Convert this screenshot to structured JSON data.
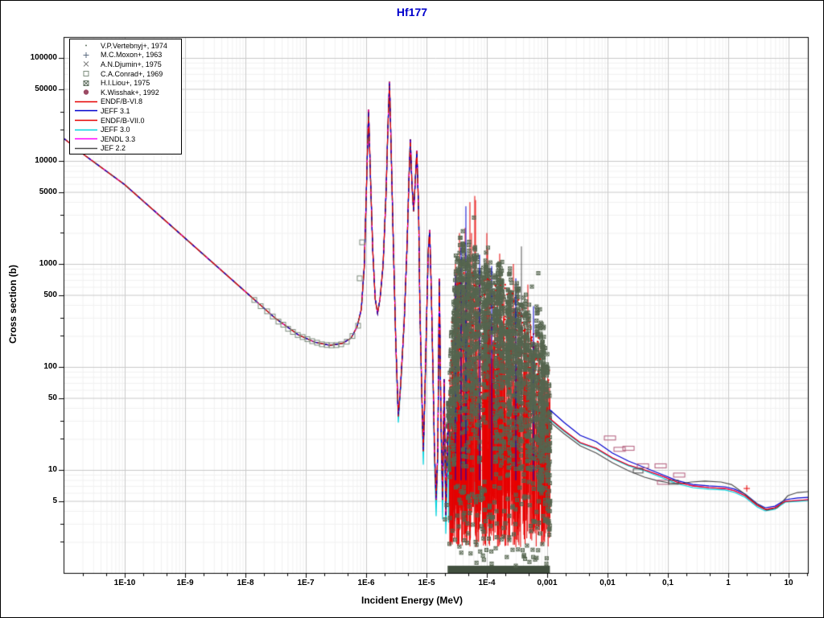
{
  "window": {
    "title": "Hf177",
    "bg": "#ffffff",
    "title_color": "#0000cc"
  },
  "legend": {
    "items": [
      {
        "label": "V.P.Vertebnyj+, 1974",
        "marker": "dot",
        "color": "#6b7b6b"
      },
      {
        "label": "M.C.Moxon+, 1963",
        "marker": "plus",
        "color": "#5b6b80"
      },
      {
        "label": "A.N.Djumin+, 1975",
        "marker": "cross",
        "color": "#7b7b7b"
      },
      {
        "label": "C.A.Conrad+, 1969",
        "marker": "square",
        "color": "#7d8c7d"
      },
      {
        "label": "H.I.Liou+, 1975",
        "marker": "crossed-square",
        "color": "#5f6e5f"
      },
      {
        "label": "K.Wisshak+, 1992",
        "marker": "filled-circle",
        "color": "#9c4a64"
      },
      {
        "label": "ENDF/B-VI.8",
        "marker": "line",
        "color": "#e60000"
      },
      {
        "label": "JEFF 3.1",
        "marker": "line",
        "color": "#0000cd"
      },
      {
        "label": "ENDF/B-VII.0",
        "marker": "line",
        "color": "#e60000"
      },
      {
        "label": "JEFF 3.0",
        "marker": "line",
        "color": "#00d2dc"
      },
      {
        "label": "JENDL 3.3",
        "marker": "line",
        "color": "#ff00ff"
      },
      {
        "label": "JEF 2.2",
        "marker": "line",
        "color": "#4d4d4d"
      }
    ]
  },
  "chart_data": {
    "type": "line",
    "title": "Hf177",
    "xlabel": "Incident Energy (MeV)",
    "ylabel": "Cross section (b)",
    "x_scale": "log",
    "y_scale": "log",
    "xlim_log": [
      -11.013,
      1.32
    ],
    "ylim_log": [
      0.0,
      5.2
    ],
    "grid": true,
    "x_ticks": [
      {
        "label": "1E-10",
        "logE": -10
      },
      {
        "label": "1E-9",
        "logE": -9
      },
      {
        "label": "1E-8",
        "logE": -8
      },
      {
        "label": "1E-7",
        "logE": -7
      },
      {
        "label": "1E-6",
        "logE": -6
      },
      {
        "label": "1E-5",
        "logE": -5
      },
      {
        "label": "1E-4",
        "logE": -4
      },
      {
        "label": "0,001",
        "logE": -3
      },
      {
        "label": "0,01",
        "logE": -2
      },
      {
        "label": "0,1",
        "logE": -1
      },
      {
        "label": "1",
        "logE": 0
      },
      {
        "label": "10",
        "logE": 1
      }
    ],
    "y_ticks": [
      {
        "label": "100000",
        "logS": 5
      },
      {
        "label": "50000",
        "logS": 4.699
      },
      {
        "label": "10000",
        "logS": 4
      },
      {
        "label": "5000",
        "logS": 3.699
      },
      {
        "label": "1000",
        "logS": 3
      },
      {
        "label": "500",
        "logS": 2.699
      },
      {
        "label": "100",
        "logS": 2
      },
      {
        "label": "50",
        "logS": 1.699
      },
      {
        "label": "10",
        "logS": 1
      },
      {
        "label": "5",
        "logS": 0.699
      }
    ],
    "curves": {
      "backbone": [
        [
          -11.013,
          4.22
        ],
        [
          -10.653,
          4.05
        ],
        [
          -10,
          3.77
        ],
        [
          -9,
          3.25
        ],
        [
          -8,
          2.73
        ],
        [
          -7.5,
          2.47
        ],
        [
          -7.12,
          2.31
        ],
        [
          -6.85,
          2.24
        ],
        [
          -6.6,
          2.21
        ],
        [
          -6.39,
          2.23
        ],
        [
          -6.25,
          2.28
        ],
        [
          -6.15,
          2.39
        ],
        [
          -6.08,
          2.56
        ],
        [
          -6.03,
          2.98
        ],
        [
          -5.99,
          3.84
        ],
        [
          -5.96,
          4.5
        ],
        [
          -5.93,
          3.88
        ],
        [
          -5.89,
          3.13
        ],
        [
          -5.85,
          2.66
        ],
        [
          -5.81,
          2.52
        ],
        [
          -5.77,
          2.66
        ],
        [
          -5.72,
          2.98
        ],
        [
          -5.67,
          3.68
        ],
        [
          -5.64,
          4.31
        ],
        [
          -5.613,
          4.77
        ],
        [
          -5.59,
          4.23
        ],
        [
          -5.55,
          3.21
        ],
        [
          -5.51,
          2.27
        ],
        [
          -5.467,
          1.52
        ],
        [
          -5.43,
          1.81
        ],
        [
          -5.37,
          2.43
        ],
        [
          -5.32,
          3.21
        ],
        [
          -5.29,
          3.84
        ],
        [
          -5.267,
          4.21
        ],
        [
          -5.24,
          3.76
        ],
        [
          -5.213,
          3.51
        ],
        [
          -5.19,
          3.76
        ],
        [
          -5.16,
          4.1
        ],
        [
          -5.13,
          3.52
        ],
        [
          -5.11,
          2.59
        ],
        [
          -5.08,
          1.81
        ],
        [
          -5.053,
          1.18
        ],
        [
          -5.03,
          1.65
        ],
        [
          -5,
          2.43
        ],
        [
          -4.97,
          3.13
        ],
        [
          -4.947,
          3.33
        ],
        [
          -4.92,
          2.74
        ],
        [
          -4.89,
          1.88
        ],
        [
          -4.867,
          1.18
        ],
        [
          -4.84,
          0.71
        ],
        [
          -4.813,
          1.18
        ],
        [
          -4.787,
          2.86
        ],
        [
          -4.76,
          1.49
        ],
        [
          -4.733,
          0.71
        ],
        [
          -4.707,
          1.88
        ],
        [
          -4.68,
          0.56
        ],
        [
          -4.653,
          1.18
        ],
        [
          -4.64,
          1.45
        ]
      ],
      "cyan_low": [
        [
          -11.013,
          4.22
        ],
        [
          -10.653,
          4.05
        ],
        [
          -10,
          3.77
        ],
        [
          -9,
          3.25
        ],
        [
          -8,
          2.73
        ],
        [
          -7.5,
          2.47
        ],
        [
          -7.12,
          2.31
        ],
        [
          -6.85,
          2.24
        ],
        [
          -6.6,
          2.21
        ],
        [
          -6.39,
          2.23
        ],
        [
          -6.25,
          2.28
        ],
        [
          -6.15,
          2.39
        ],
        [
          -6.08,
          2.56
        ],
        [
          -6.03,
          2.98
        ],
        [
          -5.99,
          3.84
        ],
        [
          -5.96,
          4.5
        ],
        [
          -5.93,
          3.88
        ],
        [
          -5.89,
          3.13
        ],
        [
          -5.85,
          2.66
        ],
        [
          -5.81,
          2.52
        ],
        [
          -5.77,
          2.66
        ],
        [
          -5.72,
          2.98
        ],
        [
          -5.67,
          3.68
        ],
        [
          -5.64,
          4.31
        ],
        [
          -5.613,
          4.77
        ],
        [
          -5.59,
          4.23
        ],
        [
          -5.55,
          3.21
        ],
        [
          -5.51,
          2.27
        ],
        [
          -5.467,
          1.46
        ],
        [
          -5.43,
          1.78
        ],
        [
          -5.37,
          2.43
        ],
        [
          -5.32,
          3.21
        ],
        [
          -5.29,
          3.84
        ],
        [
          -5.267,
          4.21
        ],
        [
          -5.24,
          3.76
        ],
        [
          -5.213,
          3.51
        ],
        [
          -5.19,
          3.76
        ],
        [
          -5.16,
          4.1
        ],
        [
          -5.13,
          3.52
        ],
        [
          -5.11,
          2.59
        ],
        [
          -5.08,
          1.75
        ],
        [
          -5.053,
          1.05
        ],
        [
          -5.03,
          1.6
        ],
        [
          -5,
          2.43
        ],
        [
          -4.97,
          3.13
        ],
        [
          -4.947,
          3.33
        ],
        [
          -4.92,
          2.74
        ],
        [
          -4.89,
          1.8
        ],
        [
          -4.867,
          1.05
        ],
        [
          -4.84,
          0.55
        ],
        [
          -4.813,
          1.1
        ],
        [
          -4.787,
          2.8
        ],
        [
          -4.76,
          1.3
        ],
        [
          -4.733,
          0.52
        ],
        [
          -4.707,
          1.7
        ],
        [
          -4.68,
          0.38
        ],
        [
          -4.653,
          0.95
        ],
        [
          -4.64,
          1.3
        ]
      ],
      "red_high": [
        [
          -2.96,
          1.5
        ],
        [
          -2.72,
          1.383
        ],
        [
          -2.453,
          1.266
        ],
        [
          -2.187,
          1.211
        ],
        [
          -1.92,
          1.117
        ],
        [
          -1.653,
          1.047
        ],
        [
          -1.387,
          1.0
        ],
        [
          -1.12,
          0.945
        ],
        [
          -0.853,
          0.883
        ],
        [
          -0.587,
          0.844
        ],
        [
          -0.32,
          0.828
        ],
        [
          -0.053,
          0.82
        ],
        [
          0.107,
          0.797
        ],
        [
          0.28,
          0.75
        ],
        [
          0.48,
          0.656
        ],
        [
          0.613,
          0.617
        ],
        [
          0.773,
          0.633
        ],
        [
          0.947,
          0.695
        ],
        [
          1.147,
          0.703
        ],
        [
          1.32,
          0.711
        ]
      ],
      "blue_high": [
        [
          -2.96,
          1.586
        ],
        [
          -2.72,
          1.461
        ],
        [
          -2.453,
          1.336
        ],
        [
          -2.187,
          1.273
        ],
        [
          -1.92,
          1.164
        ],
        [
          -1.653,
          1.086
        ],
        [
          -1.387,
          1.023
        ],
        [
          -1.12,
          0.961
        ],
        [
          -0.853,
          0.898
        ],
        [
          -0.587,
          0.859
        ],
        [
          -0.32,
          0.844
        ],
        [
          -0.053,
          0.836
        ],
        [
          0.107,
          0.813
        ],
        [
          0.28,
          0.766
        ],
        [
          0.48,
          0.672
        ],
        [
          0.613,
          0.633
        ],
        [
          0.773,
          0.648
        ],
        [
          0.947,
          0.711
        ],
        [
          1.147,
          0.727
        ],
        [
          1.32,
          0.734
        ]
      ],
      "gray_high": [
        [
          -2.96,
          1.469
        ],
        [
          -2.72,
          1.352
        ],
        [
          -2.453,
          1.234
        ],
        [
          -2.187,
          1.164
        ],
        [
          -1.92,
          1.07
        ],
        [
          -1.653,
          0.992
        ],
        [
          -1.387,
          0.93
        ],
        [
          -1.187,
          0.898
        ],
        [
          -0.987,
          0.875
        ],
        [
          -0.787,
          0.867
        ],
        [
          -0.613,
          0.883
        ],
        [
          -0.387,
          0.891
        ],
        [
          -0.12,
          0.883
        ],
        [
          0.053,
          0.859
        ],
        [
          0.24,
          0.781
        ],
        [
          0.453,
          0.68
        ],
        [
          0.64,
          0.609
        ],
        [
          0.813,
          0.633
        ],
        [
          0.987,
          0.75
        ],
        [
          1.147,
          0.781
        ],
        [
          1.32,
          0.789
        ]
      ],
      "cyan_high": [
        [
          -2.96,
          1.49
        ],
        [
          -2.72,
          1.375
        ],
        [
          -2.453,
          1.258
        ],
        [
          -2.187,
          1.203
        ],
        [
          -1.92,
          1.11
        ],
        [
          -1.653,
          1.04
        ],
        [
          -1.387,
          0.992
        ],
        [
          -1.12,
          0.93
        ],
        [
          -0.853,
          0.867
        ],
        [
          -0.587,
          0.828
        ],
        [
          -0.32,
          0.813
        ],
        [
          -0.053,
          0.805
        ],
        [
          0.107,
          0.781
        ],
        [
          0.28,
          0.734
        ],
        [
          0.48,
          0.641
        ],
        [
          0.613,
          0.602
        ],
        [
          0.773,
          0.617
        ],
        [
          0.947,
          0.688
        ],
        [
          1.147,
          0.695
        ],
        [
          1.32,
          0.703
        ]
      ]
    },
    "series": [
      {
        "name": "JENDL 3.3",
        "color": "#ff00ff",
        "low": "backbone",
        "high": "red_high"
      },
      {
        "name": "JEFF 3.0",
        "color": "#00d2dc",
        "low": "cyan_low",
        "high": "cyan_high"
      },
      {
        "name": "JEF 2.2",
        "color": "#4d4d4d",
        "low": "backbone",
        "high": "gray_high"
      },
      {
        "name": "JEFF 3.1",
        "color": "#0000cd",
        "low": "backbone",
        "high": "blue_high"
      },
      {
        "name": "ENDF/B-VII.0",
        "color": "#e60000",
        "low": "backbone",
        "high": "red_high"
      },
      {
        "name": "ENDF/B-VI.8",
        "color": "#e60000",
        "low": "backbone",
        "high": "red_high"
      }
    ],
    "unresolved_region": {
      "logE_range": [
        -4.64,
        -2.955
      ],
      "seed": 1337,
      "liou_count": 2300,
      "column_count": 170,
      "top_env": [
        [
          -4.653,
          1.6
        ],
        [
          -4.6,
          2.6
        ],
        [
          -4.55,
          3.0
        ],
        [
          -4.5,
          3.3
        ],
        [
          -4.45,
          3.42
        ],
        [
          -4.35,
          3.3
        ],
        [
          -4.2,
          3.26
        ],
        [
          -4.0,
          3.2
        ],
        [
          -3.8,
          3.15
        ],
        [
          -3.6,
          3.06
        ],
        [
          -3.45,
          2.96
        ],
        [
          -3.3,
          2.82
        ],
        [
          -3.15,
          2.62
        ],
        [
          -3.05,
          2.42
        ],
        [
          -2.955,
          2.25
        ]
      ],
      "red_spike_count": 380,
      "red_speckle_count": 650,
      "below_scatter_count": 130,
      "tall_red_spikes": [
        [
          -4.187,
          3.62
        ],
        [
          -4.2,
          3.66
        ],
        [
          -4.28,
          3.6
        ],
        [
          -4.453,
          3.3
        ],
        [
          -4.36,
          3.35
        ],
        [
          -4.253,
          3.3
        ],
        [
          -3.987,
          3.15
        ],
        [
          -3.787,
          3.1
        ],
        [
          -3.56,
          3.0
        ],
        [
          -3.32,
          2.8
        ],
        [
          -4.52,
          3.0
        ],
        [
          -4.0,
          3.3
        ]
      ],
      "blue_spikes": [
        [
          -4.347,
          3.56
        ],
        [
          -4.52,
          2.9
        ],
        [
          -4.427,
          3.21
        ],
        [
          -4.12,
          3.09
        ],
        [
          -3.92,
          2.98
        ],
        [
          -3.52,
          2.86
        ],
        [
          -3.227,
          2.59
        ]
      ],
      "gray_spikes": [
        [
          -3.427,
          3.17
        ],
        [
          -3.96,
          3.0
        ]
      ],
      "cyan_segment_count": 22,
      "axis_band_logS": [
        0.0,
        0.07
      ]
    },
    "datasets": {
      "conrad_points": [
        [
          -7.853,
          2.65
        ],
        [
          -7.747,
          2.59
        ],
        [
          -7.64,
          2.54
        ],
        [
          -7.547,
          2.49
        ],
        [
          -7.453,
          2.44
        ],
        [
          -7.373,
          2.41
        ],
        [
          -7.293,
          2.37
        ],
        [
          -7.213,
          2.34
        ],
        [
          -7.133,
          2.31
        ],
        [
          -7.053,
          2.29
        ],
        [
          -6.973,
          2.27
        ],
        [
          -6.893,
          2.25
        ],
        [
          -6.813,
          2.235
        ],
        [
          -6.733,
          2.22
        ],
        [
          -6.653,
          2.213
        ],
        [
          -6.573,
          2.21
        ],
        [
          -6.493,
          2.212
        ],
        [
          -6.413,
          2.22
        ],
        [
          -6.32,
          2.245
        ],
        [
          -6.227,
          2.3
        ],
        [
          -6.133,
          2.4
        ],
        [
          -6.107,
          2.86
        ],
        [
          -6.067,
          3.21
        ]
      ],
      "liou_outliers": [
        [
          -4.213,
          3.45
        ],
        [
          -4.013,
          3.11
        ],
        [
          -3.747,
          3.02
        ],
        [
          -3.147,
          2.91
        ],
        [
          -3.253,
          2.78
        ],
        [
          -3.12,
          2.56
        ],
        [
          -4.053,
          0.4
        ],
        [
          -3.853,
          0.24
        ],
        [
          -3.627,
          0.32
        ],
        [
          -3.387,
          0.16
        ],
        [
          -3.92,
          0.09
        ],
        [
          -3.52,
          0.07
        ],
        [
          -3.2,
          0.13
        ],
        [
          -4.32,
          0.48
        ],
        [
          -4.453,
          0.71
        ],
        [
          -4.16,
          0.56
        ],
        [
          -4.693,
          0.52
        ],
        [
          -4.667,
          0.66
        ]
      ],
      "wisshak_boxes": [
        [
          -1.96,
          1.31
        ],
        [
          -1.8,
          1.2
        ],
        [
          -1.653,
          1.21
        ],
        [
          -1.413,
          1.04
        ],
        [
          -1.12,
          1.04
        ],
        [
          -0.813,
          0.95
        ],
        [
          -1.08,
          0.88
        ]
      ],
      "dark_boxes": [
        [
          -1.493,
          0.99
        ],
        [
          -0.907,
          0.88
        ]
      ],
      "plus_marker": [
        0.307,
        0.82
      ]
    }
  }
}
